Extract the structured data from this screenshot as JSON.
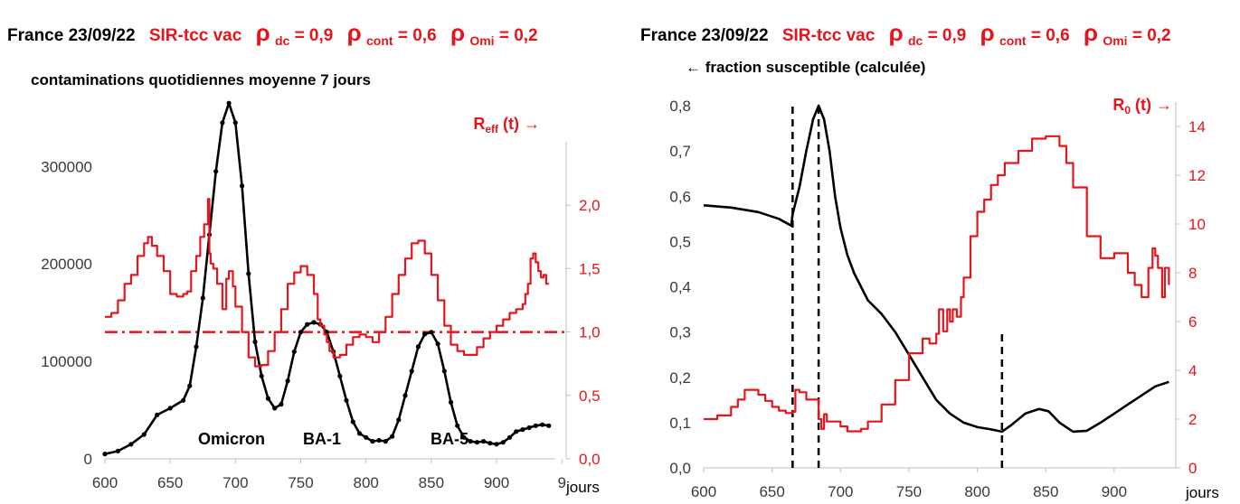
{
  "colors": {
    "primary": "#000000",
    "secondary": "#e8141c",
    "axis": "#bfbfbf"
  },
  "header_left": {
    "country_date": "France 23/09/22",
    "model": "SIR-tcc vac",
    "rho_sym": "ρ",
    "p1": {
      "sub": "dc",
      "val": " = 0,9"
    },
    "p2": {
      "sub": "cont",
      "val": " = 0,6"
    },
    "p3": {
      "sub": "Omi",
      "val": " = 0,2"
    }
  },
  "header_right": {
    "country_date": "France 23/09/22",
    "model": "SIR-tcc vac",
    "rho_sym": "ρ",
    "p1": {
      "sub": "dc",
      "val": " = 0,9"
    },
    "p2": {
      "sub": "cont",
      "val": " = 0,6"
    },
    "p3": {
      "sub": "Omi",
      "val": " = 0,2"
    }
  },
  "chart_data": [
    {
      "type": "line",
      "title": "contaminations quotidiennes  moyenne 7 jours",
      "xlabel": "jours",
      "xlim": [
        600,
        945
      ],
      "x_ticks": [
        "600",
        "650",
        "700",
        "750",
        "800",
        "850",
        "900",
        "9"
      ],
      "x_tick_values": [
        600,
        650,
        700,
        750,
        800,
        850,
        900,
        950
      ],
      "y_left": {
        "lim": [
          0,
          380000
        ],
        "ticks": [
          "0",
          "100000",
          "200000",
          "300000"
        ],
        "tick_values": [
          0,
          100000,
          200000,
          300000
        ]
      },
      "y_right": {
        "label_main": "R",
        "label_sub": "eff",
        "label_tail": " (t) →",
        "lim": [
          0,
          2.5
        ],
        "ticks": [
          "0,0",
          "0,5",
          "1,0",
          "1,5",
          "2,0"
        ],
        "tick_values": [
          0,
          0.5,
          1.0,
          1.5,
          2.0
        ]
      },
      "annotations": [
        "Omicron",
        "BA-1",
        "BA-5"
      ],
      "reference_line": {
        "axis": "right",
        "value": 1.0,
        "style": "dash-dot"
      },
      "grid": false,
      "series": [
        {
          "axis": "left",
          "style": "line+dots",
          "x": [
            600,
            610,
            620,
            630,
            640,
            650,
            660,
            665,
            670,
            675,
            680,
            685,
            690,
            695,
            700,
            705,
            710,
            715,
            720,
            725,
            730,
            735,
            740,
            745,
            750,
            755,
            760,
            765,
            770,
            775,
            780,
            785,
            790,
            795,
            800,
            805,
            810,
            815,
            820,
            825,
            830,
            835,
            840,
            845,
            850,
            855,
            860,
            865,
            870,
            875,
            880,
            885,
            890,
            895,
            900,
            905,
            910,
            915,
            920,
            925,
            930,
            935,
            940
          ],
          "y": [
            5000,
            8000,
            15000,
            25000,
            45000,
            52000,
            60000,
            75000,
            115000,
            165000,
            230000,
            295000,
            345000,
            365000,
            345000,
            280000,
            190000,
            120000,
            85000,
            62000,
            52000,
            56000,
            80000,
            110000,
            130000,
            138000,
            140000,
            138000,
            130000,
            110000,
            85000,
            60000,
            38000,
            26000,
            22000,
            18000,
            19000,
            18000,
            23000,
            40000,
            65000,
            90000,
            115000,
            128000,
            130000,
            118000,
            90000,
            58000,
            34000,
            22000,
            18000,
            17000,
            18000,
            16000,
            15000,
            17000,
            22000,
            28000,
            30000,
            32000,
            34000,
            35000,
            34000
          ]
        },
        {
          "axis": "right",
          "style": "step",
          "x": [
            600,
            605,
            610,
            615,
            620,
            625,
            630,
            633,
            636,
            640,
            645,
            650,
            655,
            660,
            663,
            666,
            670,
            673,
            676,
            679,
            680,
            681,
            683,
            686,
            690,
            693,
            695,
            698,
            700,
            705,
            710,
            715,
            720,
            725,
            730,
            735,
            740,
            745,
            750,
            755,
            760,
            763,
            765,
            768,
            770,
            772,
            775,
            780,
            785,
            790,
            795,
            800,
            805,
            810,
            815,
            820,
            825,
            830,
            835,
            840,
            845,
            850,
            855,
            860,
            865,
            870,
            875,
            880,
            885,
            890,
            895,
            900,
            905,
            910,
            915,
            920,
            922,
            924,
            926,
            928,
            930,
            932,
            934,
            936,
            938,
            940
          ],
          "y": [
            1.12,
            1.15,
            1.25,
            1.38,
            1.45,
            1.6,
            1.7,
            1.75,
            1.68,
            1.6,
            1.48,
            1.3,
            1.28,
            1.3,
            1.32,
            1.48,
            1.6,
            1.75,
            1.85,
            2.05,
            1.62,
            1.54,
            1.5,
            1.38,
            1.18,
            1.42,
            1.48,
            1.36,
            1.2,
            1.0,
            0.8,
            0.73,
            0.74,
            0.85,
            1.0,
            1.18,
            1.38,
            1.47,
            1.52,
            1.45,
            1.3,
            1.1,
            1.05,
            0.98,
            0.92,
            0.85,
            0.8,
            0.82,
            0.9,
            0.96,
            0.98,
            0.96,
            0.92,
            1.0,
            1.12,
            1.3,
            1.45,
            1.58,
            1.7,
            1.72,
            1.62,
            1.45,
            1.25,
            1.05,
            0.9,
            0.85,
            0.82,
            0.82,
            0.88,
            0.95,
            1.0,
            1.05,
            1.1,
            1.15,
            1.18,
            1.22,
            1.3,
            1.38,
            1.58,
            1.62,
            1.55,
            1.48,
            1.43,
            1.45,
            1.38,
            1.38
          ]
        }
      ]
    },
    {
      "type": "line",
      "title": "← fraction susceptible (calculée)",
      "xlabel": "jours",
      "xlim": [
        600,
        945
      ],
      "x_ticks": [
        "600",
        "650",
        "700",
        "750",
        "800",
        "850",
        "900"
      ],
      "x_tick_values": [
        600,
        650,
        700,
        750,
        800,
        850,
        900
      ],
      "y_left": {
        "lim": [
          0,
          0.8
        ],
        "ticks": [
          "0,0",
          "0,1",
          "0,2",
          "0,3",
          "0,4",
          "0,5",
          "0,6",
          "0,7",
          "0,8"
        ],
        "tick_values": [
          0,
          0.1,
          0.2,
          0.3,
          0.4,
          0.5,
          0.6,
          0.7,
          0.8
        ]
      },
      "y_right": {
        "label_main": "R",
        "label_sub": "0",
        "label_tail": " (t) →",
        "lim": [
          0,
          15
        ],
        "ticks": [
          "0",
          "2",
          "4",
          "6",
          "8",
          "10",
          "12",
          "14"
        ],
        "tick_values": [
          0,
          2,
          4,
          6,
          8,
          10,
          12,
          14
        ]
      },
      "vertical_markers": [
        {
          "x": 665,
          "top": 0.8
        },
        {
          "x": 684,
          "top": 0.8
        },
        {
          "x": 818,
          "top": 0.3
        }
      ],
      "grid": false,
      "series": [
        {
          "axis": "left",
          "style": "line",
          "x": [
            600,
            620,
            640,
            655,
            664,
            665,
            670,
            675,
            680,
            684,
            688,
            692,
            696,
            700,
            705,
            710,
            720,
            730,
            740,
            750,
            760,
            770,
            780,
            790,
            800,
            810,
            818,
            825,
            835,
            845,
            852,
            860,
            870,
            880,
            890,
            900,
            910,
            920,
            930,
            940
          ],
          "y": [
            0.58,
            0.575,
            0.565,
            0.55,
            0.535,
            0.56,
            0.62,
            0.7,
            0.77,
            0.8,
            0.77,
            0.7,
            0.6,
            0.53,
            0.47,
            0.43,
            0.37,
            0.34,
            0.3,
            0.25,
            0.2,
            0.15,
            0.12,
            0.1,
            0.09,
            0.085,
            0.08,
            0.095,
            0.12,
            0.13,
            0.125,
            0.1,
            0.08,
            0.082,
            0.1,
            0.12,
            0.14,
            0.16,
            0.18,
            0.19
          ]
        },
        {
          "axis": "right",
          "style": "step",
          "x": [
            600,
            610,
            620,
            625,
            630,
            635,
            640,
            645,
            650,
            655,
            660,
            665,
            667,
            670,
            675,
            680,
            684,
            686,
            688,
            690,
            695,
            700,
            705,
            710,
            715,
            720,
            730,
            740,
            750,
            760,
            765,
            770,
            772,
            775,
            778,
            780,
            782,
            785,
            788,
            790,
            795,
            800,
            805,
            810,
            815,
            820,
            830,
            840,
            850,
            860,
            865,
            870,
            880,
            890,
            900,
            910,
            915,
            920,
            925,
            928,
            930,
            932,
            935,
            937,
            940
          ],
          "y": [
            2.0,
            2.15,
            2.5,
            2.8,
            3.2,
            3.2,
            3.0,
            2.75,
            2.5,
            2.35,
            2.25,
            2.3,
            3.2,
            3.1,
            2.8,
            2.8,
            2.0,
            1.6,
            2.2,
            1.9,
            1.9,
            1.7,
            1.5,
            1.5,
            1.6,
            1.9,
            2.6,
            3.6,
            4.7,
            5.3,
            5.1,
            5.5,
            6.5,
            5.6,
            6.5,
            6.0,
            6.5,
            6.2,
            7.0,
            7.8,
            9.5,
            10.5,
            11.0,
            11.6,
            12.0,
            12.5,
            13.0,
            13.5,
            13.6,
            13.2,
            12.5,
            11.5,
            9.5,
            8.6,
            8.8,
            8.0,
            7.5,
            7.0,
            8.2,
            9.0,
            8.7,
            8.2,
            7.0,
            8.2,
            7.5
          ]
        }
      ]
    }
  ]
}
